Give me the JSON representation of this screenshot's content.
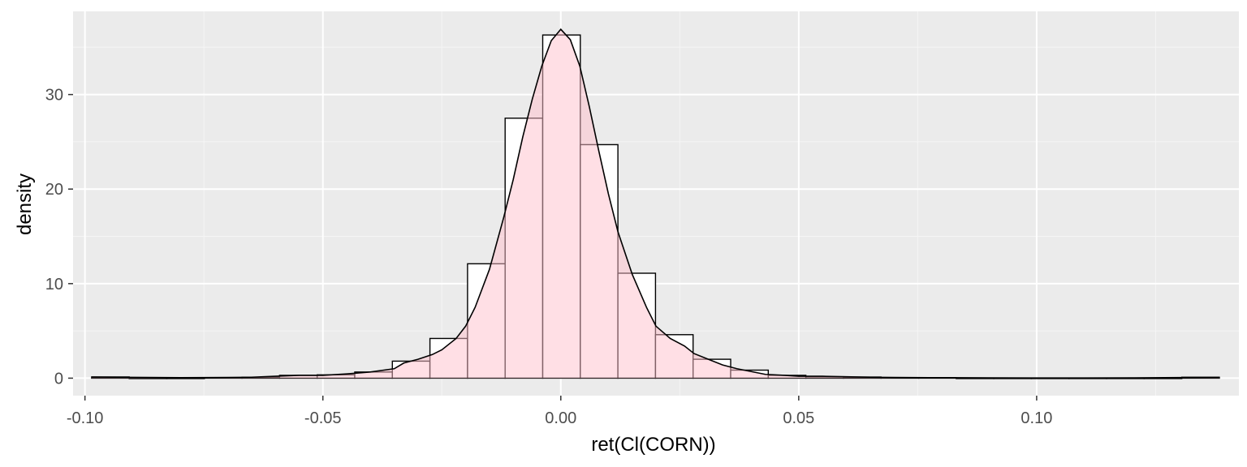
{
  "chart_data": {
    "type": "histogram",
    "xlabel": "ret(Cl(CORN))",
    "ylabel": "density",
    "xlim": [
      -0.1025,
      0.1425
    ],
    "ylim": [
      -1.85,
      38.8
    ],
    "x_ticks": [
      {
        "value": -0.1,
        "label": "-0.10"
      },
      {
        "value": -0.05,
        "label": "-0.05"
      },
      {
        "value": 0.0,
        "label": "0.00"
      },
      {
        "value": 0.05,
        "label": "0.05"
      },
      {
        "value": 0.1,
        "label": "0.10"
      }
    ],
    "y_ticks": [
      {
        "value": 0,
        "label": "0"
      },
      {
        "value": 10,
        "label": "10"
      },
      {
        "value": 20,
        "label": "20"
      },
      {
        "value": 30,
        "label": "30"
      }
    ],
    "grid": true,
    "colors": {
      "panel_background": "#ebebeb",
      "grid_major": "#ffffff",
      "grid_minor": "#f5f5f5",
      "bar_fill": "#ffffff",
      "bar_outline": "#000000",
      "density_fill": "#ffc0cb",
      "density_fill_opacity": 0.5,
      "density_line": "#000000"
    },
    "histogram": {
      "bin_width": 0.0079,
      "bins": [
        {
          "x0": -0.0986,
          "x1": -0.0907,
          "density": 0.13
        },
        {
          "x0": -0.0907,
          "x1": -0.0828,
          "density": 0.0
        },
        {
          "x0": -0.0828,
          "x1": -0.0749,
          "density": 0.0
        },
        {
          "x0": -0.0749,
          "x1": -0.067,
          "density": 0.06
        },
        {
          "x0": -0.067,
          "x1": -0.0591,
          "density": 0.1
        },
        {
          "x0": -0.0591,
          "x1": -0.0512,
          "density": 0.3
        },
        {
          "x0": -0.0512,
          "x1": -0.0433,
          "density": 0.35
        },
        {
          "x0": -0.0433,
          "x1": -0.0354,
          "density": 0.65
        },
        {
          "x0": -0.0354,
          "x1": -0.0275,
          "density": 1.8
        },
        {
          "x0": -0.0275,
          "x1": -0.0196,
          "density": 4.2
        },
        {
          "x0": -0.0196,
          "x1": -0.0117,
          "density": 12.1
        },
        {
          "x0": -0.0117,
          "x1": -0.0038,
          "density": 27.5
        },
        {
          "x0": -0.0038,
          "x1": 0.0041,
          "density": 36.3
        },
        {
          "x0": 0.0041,
          "x1": 0.012,
          "density": 24.7
        },
        {
          "x0": 0.012,
          "x1": 0.0199,
          "density": 11.1
        },
        {
          "x0": 0.0199,
          "x1": 0.0278,
          "density": 4.6
        },
        {
          "x0": 0.0278,
          "x1": 0.0357,
          "density": 2.0
        },
        {
          "x0": 0.0357,
          "x1": 0.0436,
          "density": 0.85
        },
        {
          "x0": 0.0436,
          "x1": 0.0515,
          "density": 0.3
        },
        {
          "x0": 0.0515,
          "x1": 0.0594,
          "density": 0.15
        },
        {
          "x0": 0.0594,
          "x1": 0.0673,
          "density": 0.12
        },
        {
          "x0": 0.0673,
          "x1": 0.0752,
          "density": 0.05
        },
        {
          "x0": 0.0752,
          "x1": 0.0831,
          "density": 0.05
        },
        {
          "x0": 0.0831,
          "x1": 0.091,
          "density": 0.0
        },
        {
          "x0": 0.091,
          "x1": 0.0989,
          "density": 0.0
        },
        {
          "x0": 0.0989,
          "x1": 0.1068,
          "density": 0.0
        },
        {
          "x0": 0.1068,
          "x1": 0.1147,
          "density": 0.0
        },
        {
          "x0": 0.1147,
          "x1": 0.1226,
          "density": 0.0
        },
        {
          "x0": 0.1226,
          "x1": 0.1305,
          "density": 0.0
        },
        {
          "x0": 0.1305,
          "x1": 0.1384,
          "density": 0.1
        }
      ]
    },
    "density_curve": [
      [
        -0.0986,
        0.12
      ],
      [
        -0.09,
        0.09
      ],
      [
        -0.08,
        0.05
      ],
      [
        -0.07,
        0.08
      ],
      [
        -0.065,
        0.1
      ],
      [
        -0.06,
        0.2
      ],
      [
        -0.055,
        0.3
      ],
      [
        -0.05,
        0.3
      ],
      [
        -0.045,
        0.45
      ],
      [
        -0.04,
        0.65
      ],
      [
        -0.035,
        1.0
      ],
      [
        -0.033,
        1.6
      ],
      [
        -0.03,
        2.0
      ],
      [
        -0.027,
        2.5
      ],
      [
        -0.025,
        3.0
      ],
      [
        -0.022,
        4.2
      ],
      [
        -0.02,
        5.5
      ],
      [
        -0.018,
        7.5
      ],
      [
        -0.015,
        11.5
      ],
      [
        -0.012,
        17.0
      ],
      [
        -0.01,
        21.0
      ],
      [
        -0.008,
        25.5
      ],
      [
        -0.006,
        29.5
      ],
      [
        -0.004,
        33.0
      ],
      [
        -0.002,
        35.7
      ],
      [
        0.0,
        36.9
      ],
      [
        0.002,
        35.8
      ],
      [
        0.004,
        33.0
      ],
      [
        0.006,
        28.7
      ],
      [
        0.008,
        24.0
      ],
      [
        0.01,
        19.5
      ],
      [
        0.012,
        15.5
      ],
      [
        0.015,
        11.0
      ],
      [
        0.018,
        7.5
      ],
      [
        0.02,
        5.5
      ],
      [
        0.023,
        4.2
      ],
      [
        0.026,
        3.4
      ],
      [
        0.028,
        2.6
      ],
      [
        0.031,
        2.0
      ],
      [
        0.034,
        1.4
      ],
      [
        0.037,
        1.0
      ],
      [
        0.04,
        0.7
      ],
      [
        0.043,
        0.4
      ],
      [
        0.047,
        0.3
      ],
      [
        0.05,
        0.2
      ],
      [
        0.055,
        0.2
      ],
      [
        0.06,
        0.15
      ],
      [
        0.065,
        0.1
      ],
      [
        0.07,
        0.07
      ],
      [
        0.08,
        0.05
      ],
      [
        0.09,
        0.03
      ],
      [
        0.1,
        0.02
      ],
      [
        0.11,
        0.02
      ],
      [
        0.12,
        0.03
      ],
      [
        0.13,
        0.06
      ],
      [
        0.1384,
        0.08
      ]
    ]
  }
}
